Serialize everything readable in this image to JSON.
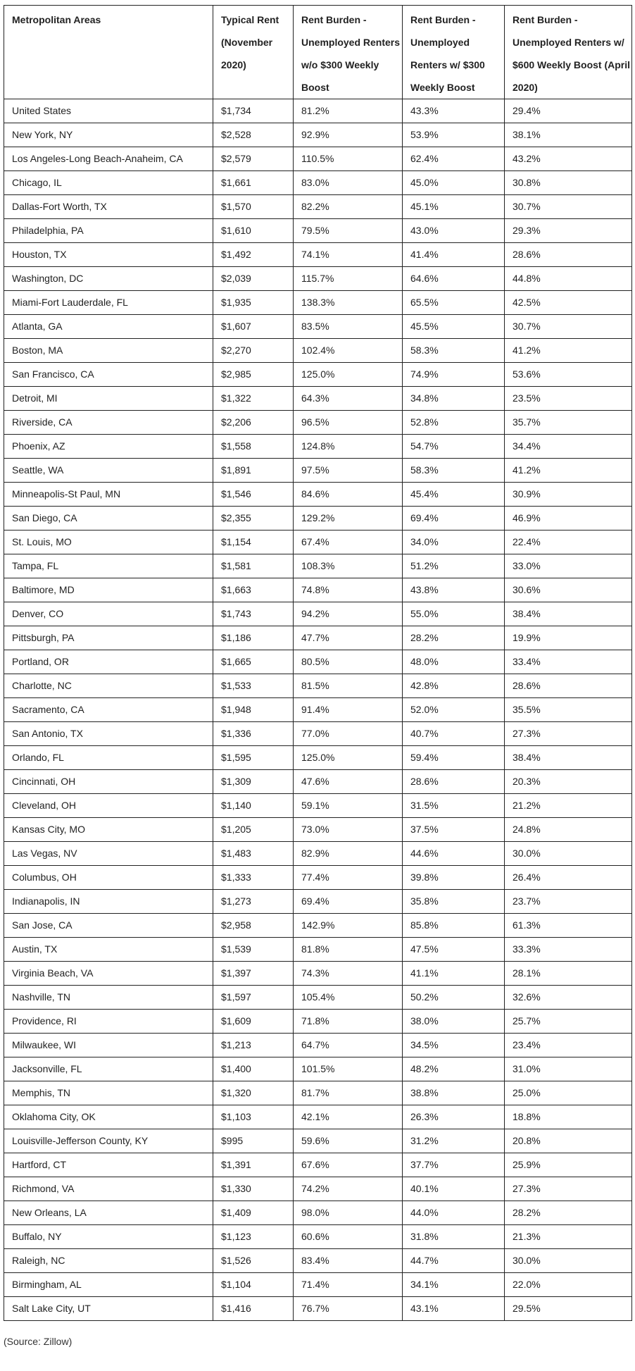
{
  "table": {
    "headers": [
      "Metropolitan Areas",
      "Typical Rent (November 2020)",
      "Rent Burden - Unemployed Renters w/o $300 Weekly Boost",
      "Rent Burden - Unemployed Renters w/ $300 Weekly Boost",
      "Rent Burden - Unemployed Renters w/ $600 Weekly Boost (April 2020)"
    ],
    "rows": [
      [
        "United States",
        "$1,734",
        "81.2%",
        "43.3%",
        "29.4%"
      ],
      [
        "New York, NY",
        "$2,528",
        "92.9%",
        "53.9%",
        "38.1%"
      ],
      [
        "Los Angeles-Long Beach-Anaheim, CA",
        "$2,579",
        "110.5%",
        "62.4%",
        "43.2%"
      ],
      [
        "Chicago, IL",
        "$1,661",
        "83.0%",
        "45.0%",
        "30.8%"
      ],
      [
        "Dallas-Fort Worth, TX",
        "$1,570",
        "82.2%",
        "45.1%",
        "30.7%"
      ],
      [
        "Philadelphia, PA",
        "$1,610",
        "79.5%",
        "43.0%",
        "29.3%"
      ],
      [
        "Houston, TX",
        "$1,492",
        "74.1%",
        "41.4%",
        "28.6%"
      ],
      [
        "Washington, DC",
        "$2,039",
        "115.7%",
        "64.6%",
        "44.8%"
      ],
      [
        "Miami-Fort Lauderdale, FL",
        "$1,935",
        "138.3%",
        "65.5%",
        "42.5%"
      ],
      [
        "Atlanta, GA",
        "$1,607",
        "83.5%",
        "45.5%",
        "30.7%"
      ],
      [
        "Boston, MA",
        "$2,270",
        "102.4%",
        "58.3%",
        "41.2%"
      ],
      [
        "San Francisco, CA",
        "$2,985",
        "125.0%",
        "74.9%",
        "53.6%"
      ],
      [
        "Detroit, MI",
        "$1,322",
        "64.3%",
        "34.8%",
        "23.5%"
      ],
      [
        "Riverside, CA",
        "$2,206",
        "96.5%",
        "52.8%",
        "35.7%"
      ],
      [
        "Phoenix, AZ",
        "$1,558",
        "124.8%",
        "54.7%",
        "34.4%"
      ],
      [
        "Seattle, WA",
        "$1,891",
        "97.5%",
        "58.3%",
        "41.2%"
      ],
      [
        "Minneapolis-St Paul, MN",
        "$1,546",
        "84.6%",
        "45.4%",
        "30.9%"
      ],
      [
        "San Diego, CA",
        "$2,355",
        "129.2%",
        "69.4%",
        "46.9%"
      ],
      [
        "St. Louis, MO",
        "$1,154",
        "67.4%",
        "34.0%",
        "22.4%"
      ],
      [
        "Tampa, FL",
        "$1,581",
        "108.3%",
        "51.2%",
        "33.0%"
      ],
      [
        "Baltimore, MD",
        "$1,663",
        "74.8%",
        "43.8%",
        "30.6%"
      ],
      [
        "Denver, CO",
        "$1,743",
        "94.2%",
        "55.0%",
        "38.4%"
      ],
      [
        "Pittsburgh, PA",
        "$1,186",
        "47.7%",
        "28.2%",
        "19.9%"
      ],
      [
        "Portland, OR",
        "$1,665",
        "80.5%",
        "48.0%",
        "33.4%"
      ],
      [
        "Charlotte, NC",
        "$1,533",
        "81.5%",
        "42.8%",
        "28.6%"
      ],
      [
        "Sacramento, CA",
        "$1,948",
        "91.4%",
        "52.0%",
        "35.5%"
      ],
      [
        "San Antonio, TX",
        "$1,336",
        "77.0%",
        "40.7%",
        "27.3%"
      ],
      [
        "Orlando, FL",
        "$1,595",
        "125.0%",
        "59.4%",
        "38.4%"
      ],
      [
        "Cincinnati, OH",
        "$1,309",
        "47.6%",
        "28.6%",
        "20.3%"
      ],
      [
        "Cleveland, OH",
        "$1,140",
        "59.1%",
        "31.5%",
        "21.2%"
      ],
      [
        "Kansas City, MO",
        "$1,205",
        "73.0%",
        "37.5%",
        "24.8%"
      ],
      [
        "Las Vegas, NV",
        "$1,483",
        "82.9%",
        "44.6%",
        "30.0%"
      ],
      [
        "Columbus, OH",
        "$1,333",
        "77.4%",
        "39.8%",
        "26.4%"
      ],
      [
        "Indianapolis, IN",
        "$1,273",
        "69.4%",
        "35.8%",
        "23.7%"
      ],
      [
        "San Jose, CA",
        "$2,958",
        "142.9%",
        "85.8%",
        "61.3%"
      ],
      [
        "Austin, TX",
        "$1,539",
        "81.8%",
        "47.5%",
        "33.3%"
      ],
      [
        "Virginia Beach, VA",
        "$1,397",
        "74.3%",
        "41.1%",
        "28.1%"
      ],
      [
        "Nashville, TN",
        "$1,597",
        "105.4%",
        "50.2%",
        "32.6%"
      ],
      [
        "Providence, RI",
        "$1,609",
        "71.8%",
        "38.0%",
        "25.7%"
      ],
      [
        "Milwaukee, WI",
        "$1,213",
        "64.7%",
        "34.5%",
        "23.4%"
      ],
      [
        "Jacksonville, FL",
        "$1,400",
        "101.5%",
        "48.2%",
        "31.0%"
      ],
      [
        "Memphis, TN",
        "$1,320",
        "81.7%",
        "38.8%",
        "25.0%"
      ],
      [
        "Oklahoma City, OK",
        "$1,103",
        "42.1%",
        "26.3%",
        "18.8%"
      ],
      [
        "Louisville-Jefferson County, KY",
        "$995",
        "59.6%",
        "31.2%",
        "20.8%"
      ],
      [
        "Hartford, CT",
        "$1,391",
        "67.6%",
        "37.7%",
        "25.9%"
      ],
      [
        "Richmond, VA",
        "$1,330",
        "74.2%",
        "40.1%",
        "27.3%"
      ],
      [
        "New Orleans, LA",
        "$1,409",
        "98.0%",
        "44.0%",
        "28.2%"
      ],
      [
        "Buffalo, NY",
        "$1,123",
        "60.6%",
        "31.8%",
        "21.3%"
      ],
      [
        "Raleigh, NC",
        "$1,526",
        "83.4%",
        "44.7%",
        "30.0%"
      ],
      [
        "Birmingham, AL",
        "$1,104",
        "71.4%",
        "34.1%",
        "22.0%"
      ],
      [
        "Salt Lake City, UT",
        "$1,416",
        "76.7%",
        "43.1%",
        "29.5%"
      ]
    ]
  },
  "source": "(Source: Zillow)"
}
